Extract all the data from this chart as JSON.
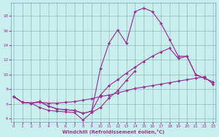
{
  "xlabel": "Windchill (Refroidissement éolien,°C)",
  "background_color": "#c8eeee",
  "line_color": "#993399",
  "xlim": [
    -0.3,
    23.3
  ],
  "ylim": [
    3.5,
    19.8
  ],
  "xticks": [
    0,
    1,
    2,
    3,
    4,
    5,
    6,
    7,
    8,
    9,
    10,
    11,
    12,
    13,
    14,
    15,
    16,
    17,
    18,
    19,
    20,
    21,
    22,
    23
  ],
  "yticks": [
    4,
    6,
    8,
    10,
    12,
    14,
    16,
    18
  ],
  "lines": [
    {
      "x": [
        0,
        1,
        2,
        3,
        4,
        5,
        6,
        7,
        8,
        9,
        10,
        11,
        12,
        13,
        14,
        15,
        16,
        17,
        18,
        19,
        20,
        21,
        22,
        23
      ],
      "y": [
        7.0,
        6.2,
        6.1,
        6.3,
        5.7,
        5.3,
        5.2,
        5.1,
        4.7,
        5.0,
        10.8,
        14.3,
        16.1,
        14.3,
        18.6,
        19.1,
        18.6,
        17.0,
        14.8,
        12.5,
        12.5,
        10.0,
        9.5,
        9.0
      ]
    },
    {
      "x": [
        0,
        1,
        2,
        3,
        4,
        5,
        6,
        7,
        8,
        9,
        10,
        11,
        12,
        13,
        14,
        15,
        16,
        17,
        18,
        19,
        20,
        21,
        22,
        23
      ],
      "y": [
        7.0,
        6.2,
        6.1,
        6.3,
        5.7,
        5.3,
        5.2,
        5.1,
        4.7,
        5.0,
        7.2,
        8.5,
        9.3,
        10.2,
        11.0,
        11.8,
        12.5,
        13.1,
        13.6,
        12.2,
        12.5,
        10.0,
        9.5,
        9.0
      ]
    },
    {
      "x": [
        0,
        1,
        2,
        3,
        4,
        5,
        6,
        7,
        8,
        9,
        10,
        11,
        12,
        13,
        14,
        15,
        16,
        17,
        18,
        19,
        20,
        21,
        22,
        23
      ],
      "y": [
        7.0,
        6.2,
        6.1,
        6.2,
        6.1,
        6.1,
        6.2,
        6.3,
        6.5,
        6.7,
        7.0,
        7.2,
        7.5,
        7.8,
        8.1,
        8.3,
        8.5,
        8.7,
        8.9,
        9.1,
        9.3,
        9.5,
        9.7,
        8.7
      ]
    },
    {
      "x": [
        0,
        1,
        2,
        3,
        4,
        5,
        6,
        7,
        8,
        9,
        10,
        11,
        12,
        13,
        14
      ],
      "y": [
        7.0,
        6.2,
        6.1,
        5.5,
        5.1,
        5.0,
        4.9,
        4.8,
        3.8,
        4.8,
        5.5,
        6.8,
        7.8,
        9.2,
        10.5
      ]
    }
  ]
}
